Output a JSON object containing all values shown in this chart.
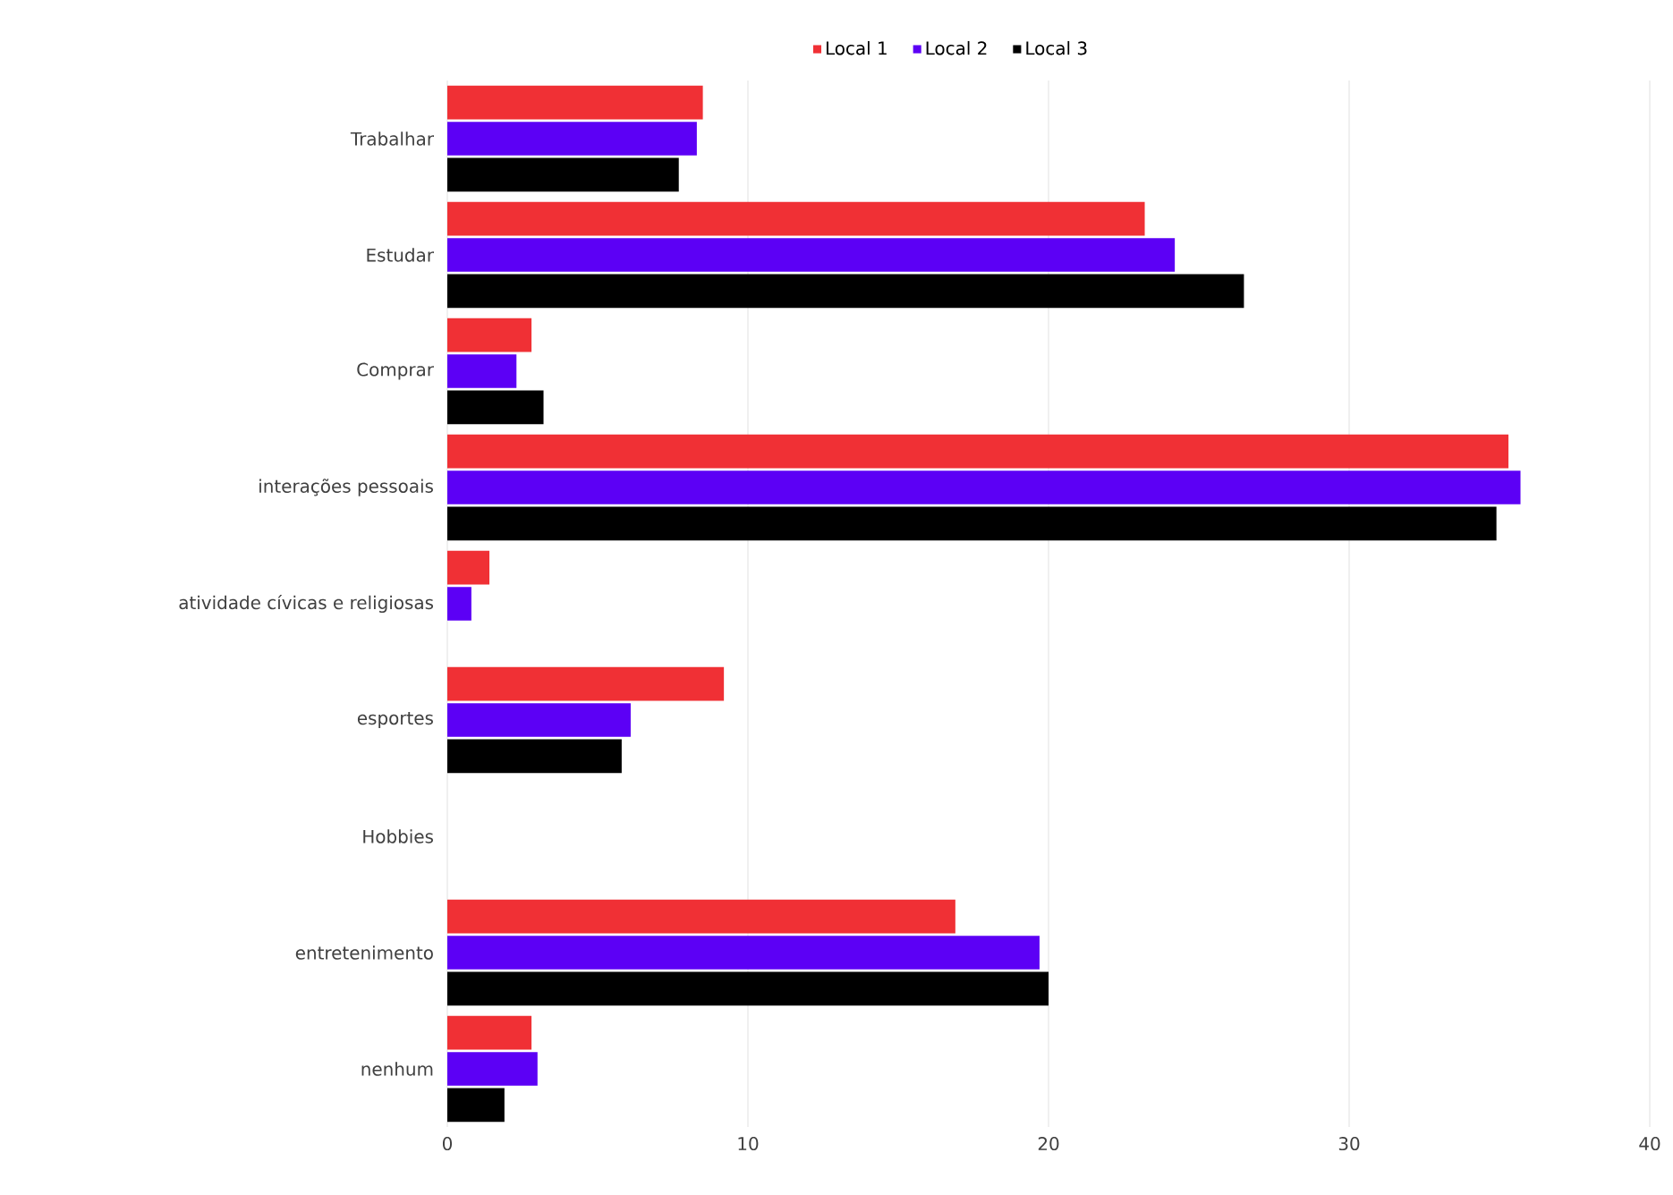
{
  "chart_data": {
    "type": "bar",
    "orientation": "horizontal",
    "categories": [
      "Trabalhar",
      "Estudar",
      "Comprar",
      "interações pessoais",
      "atividade cívicas e religiosas",
      "esportes",
      "Hobbies",
      "entretenimento",
      "nenhum"
    ],
    "series": [
      {
        "name": "Local 1",
        "color": "#f03035",
        "values": [
          8.5,
          23.2,
          2.8,
          35.3,
          1.4,
          9.2,
          0,
          16.9,
          2.8
        ]
      },
      {
        "name": "Local 2",
        "color": "#5c00f5",
        "values": [
          8.3,
          24.2,
          2.3,
          35.7,
          0.8,
          6.1,
          0,
          19.7,
          3.0
        ]
      },
      {
        "name": "Local 3",
        "color": "#000000",
        "values": [
          7.7,
          26.5,
          3.2,
          34.9,
          0,
          5.8,
          0,
          20.0,
          1.9
        ]
      }
    ],
    "xlim": [
      0,
      40
    ],
    "xticks": [
      0,
      10,
      20,
      30,
      40
    ],
    "grid": "x",
    "legend": "top"
  }
}
